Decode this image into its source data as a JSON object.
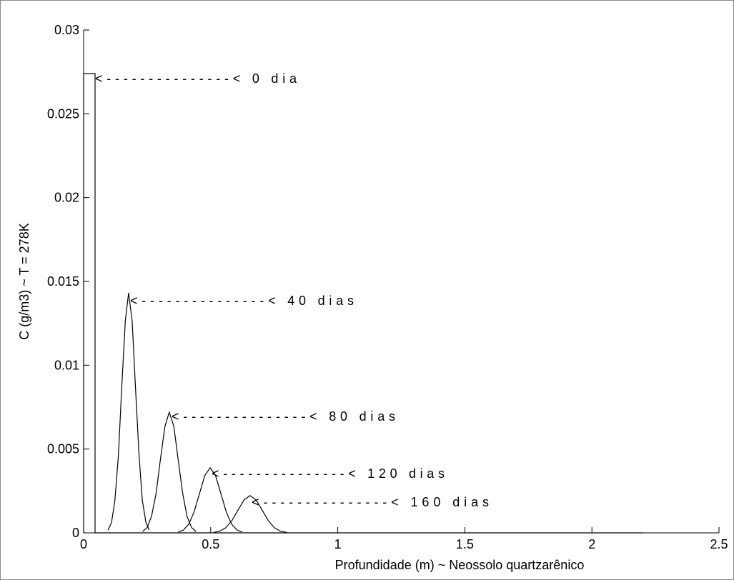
{
  "chart_data": {
    "type": "line",
    "xlabel": "Profundidade (m)  ~  Neossolo quartzarênico",
    "ylabel": "C (g/m3)  ~  T = 278K",
    "xlim": [
      0,
      2.5
    ],
    "xticks": [
      0,
      0.5,
      1,
      1.5,
      2,
      2.5
    ],
    "ylim": [
      0,
      0.03
    ],
    "yticks": [
      0,
      0.005,
      0.01,
      0.015,
      0.02,
      0.025,
      0.03
    ],
    "grid": false,
    "series": [
      {
        "color": "#000000",
        "x": [
          0,
          0,
          0.045,
          0.045,
          2.2
        ],
        "values": [
          0,
          0.0274,
          0.0274,
          0,
          0
        ]
      },
      {
        "color": "#000000",
        "x": [
          0.096,
          0.11,
          0.123,
          0.137,
          0.15,
          0.164,
          0.177,
          0.191,
          0.204,
          0.218,
          0.231,
          0.245,
          0.258
        ],
        "values": [
          0.000159,
          0.000629,
          0.001937,
          0.00465,
          0.008685,
          0.012637,
          0.01432,
          0.012637,
          0.008685,
          0.00465,
          0.001937,
          0.000629,
          0.000159
        ]
      },
      {
        "color": "#000000",
        "x": [
          0.232,
          0.25,
          0.267,
          0.285,
          0.302,
          0.32,
          0.337,
          0.355,
          0.372,
          0.39,
          0.407,
          0.425,
          0.442
        ],
        "values": [
          8e-05,
          0.000316,
          0.000974,
          0.002338,
          0.004367,
          0.006354,
          0.0072,
          0.006354,
          0.004367,
          0.002338,
          0.000974,
          0.000316,
          8e-05
        ]
      },
      {
        "color": "#000000",
        "x": [
          0.372,
          0.393,
          0.414,
          0.435,
          0.456,
          0.477,
          0.498,
          0.519,
          0.54,
          0.561,
          0.582,
          0.603,
          0.624
        ],
        "values": [
          4.3e-05,
          0.00017,
          0.000525,
          0.00126,
          0.002353,
          0.003424,
          0.00388,
          0.003424,
          0.002353,
          0.00126,
          0.000525,
          0.00017,
          4.3e-05
        ]
      },
      {
        "color": "#000000",
        "x": [
          0.511,
          0.535,
          0.559,
          0.583,
          0.607,
          0.631,
          0.655,
          0.679,
          0.703,
          0.727,
          0.751,
          0.775,
          0.799
        ],
        "values": [
          2.5e-05,
          9.7e-05,
          0.0003,
          0.000721,
          0.001346,
          0.001959,
          0.00222,
          0.001959,
          0.001346,
          0.000721,
          0.0003,
          9.7e-05,
          2.5e-05
        ]
      }
    ],
    "annotations": [
      "<---------------< 0 dia",
      "<---------------< 40 dias",
      "<---------------< 80 dias",
      "<---------------< 120 dias",
      "<---------------< 160 dias"
    ]
  }
}
